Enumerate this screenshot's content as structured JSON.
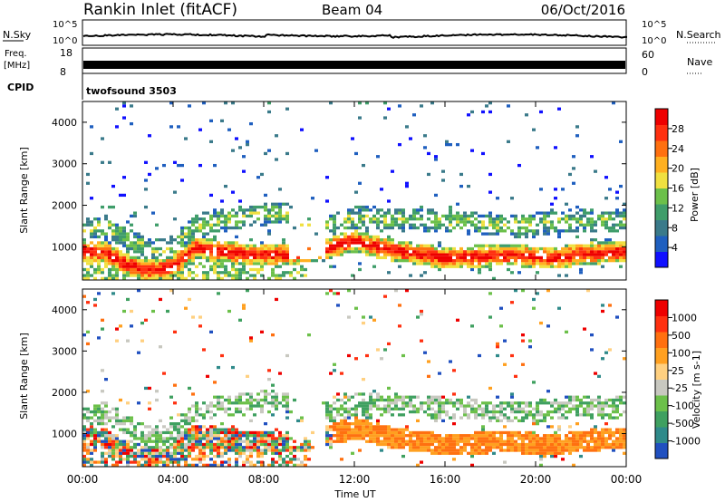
{
  "header": {
    "station": "Rankin Inlet (fitACF)",
    "beam": "Beam 04",
    "date": "06/Oct/2016"
  },
  "top_panels": {
    "nsky": {
      "label": "N.Sky",
      "ticks": [
        "10^5",
        "10^0"
      ]
    },
    "nsearch": {
      "label": "N.Search",
      "ticks": [
        "10^5",
        "10^0"
      ]
    },
    "freq": {
      "label_line1": "Freq.",
      "label_line2": "[MHz]",
      "ticks": [
        "18",
        "8"
      ]
    },
    "nave": {
      "label": "Nave",
      "ticks": [
        "60",
        "0"
      ]
    },
    "cpid": {
      "label": "CPID",
      "value": "twofsound 3503"
    }
  },
  "chart_data": [
    {
      "type": "heatmap",
      "name": "power",
      "ylabel": "Slant Range [km]",
      "xlabel": "Time UT",
      "xlim": [
        0,
        24
      ],
      "ylim": [
        200,
        4500
      ],
      "x_ticks": [
        "00:00",
        "04:00",
        "08:00",
        "12:00",
        "16:00",
        "20:00",
        "00:00"
      ],
      "y_ticks": [
        "1000",
        "2000",
        "3000",
        "4000"
      ],
      "colorbar": {
        "label": "Power [dB]",
        "ticks": [
          "28",
          "24",
          "20",
          "16",
          "12",
          "8",
          "4"
        ],
        "colors": [
          "#1010ff",
          "#1f5fbf",
          "#3a7a8a",
          "#3f9d6a",
          "#6cc04a",
          "#f0e040",
          "#ffb020",
          "#ff7010",
          "#ff3010",
          "#ee0000"
        ]
      },
      "primary_band": [
        [
          0,
          900
        ],
        [
          1,
          860
        ],
        [
          2,
          560
        ],
        [
          3,
          420
        ],
        [
          4,
          520
        ],
        [
          5,
          980
        ],
        [
          6,
          900
        ],
        [
          7,
          820
        ],
        [
          8,
          800
        ],
        [
          9,
          820
        ],
        [
          10,
          880
        ],
        [
          11,
          980
        ],
        [
          12,
          1150
        ],
        [
          13,
          1000
        ],
        [
          14,
          880
        ],
        [
          15,
          800
        ],
        [
          16,
          740
        ],
        [
          17,
          760
        ],
        [
          18,
          780
        ],
        [
          19,
          800
        ],
        [
          20,
          760
        ],
        [
          21,
          740
        ],
        [
          22,
          820
        ],
        [
          23,
          860
        ],
        [
          24,
          880
        ]
      ],
      "secondary_band": [
        [
          0,
          1400
        ],
        [
          1,
          1500
        ],
        [
          2,
          1200
        ],
        [
          3,
          900
        ],
        [
          4,
          1000
        ],
        [
          5,
          1500
        ],
        [
          6,
          1650
        ],
        [
          7,
          1700
        ],
        [
          8,
          1780
        ],
        [
          9,
          1800
        ],
        [
          10,
          1500
        ],
        [
          11,
          1500
        ],
        [
          12,
          1700
        ],
        [
          13,
          1700
        ],
        [
          14,
          1650
        ],
        [
          15,
          1650
        ],
        [
          16,
          1620
        ],
        [
          17,
          1600
        ],
        [
          18,
          1500
        ],
        [
          19,
          1550
        ],
        [
          20,
          1550
        ],
        [
          21,
          1600
        ],
        [
          22,
          1650
        ],
        [
          23,
          1600
        ],
        [
          24,
          1650
        ]
      ]
    },
    {
      "type": "heatmap",
      "name": "velocity",
      "ylabel": "Slant Range [km]",
      "xlabel": "Time UT",
      "xlim": [
        0,
        24
      ],
      "ylim": [
        200,
        4500
      ],
      "x_ticks": [
        "00:00",
        "04:00",
        "08:00",
        "12:00",
        "16:00",
        "20:00",
        "00:00"
      ],
      "y_ticks": [
        "1000",
        "2000",
        "3000",
        "4000"
      ],
      "colorbar": {
        "label": "Velocity [m s-1]",
        "ticks": [
          "1000",
          "500",
          "100",
          "25",
          "-25",
          "-100",
          "-500",
          "-1000"
        ],
        "colors": [
          "#2050c0",
          "#2f8a8a",
          "#3fa060",
          "#6cc04a",
          "#c8c8c0",
          "#ffd080",
          "#ffa020",
          "#ff7010",
          "#ff3010",
          "#ee0000"
        ]
      }
    }
  ]
}
